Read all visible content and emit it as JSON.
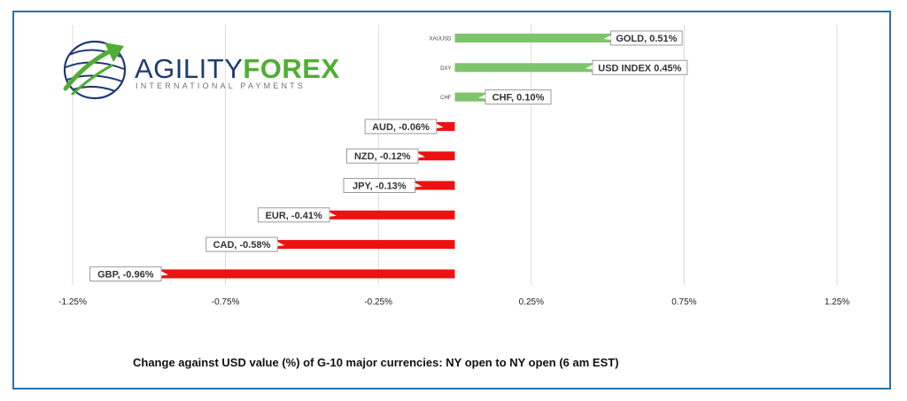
{
  "logo": {
    "brand_part1": "AGILITY",
    "brand_part2": "FOREX",
    "tagline": "INTERNATIONAL PAYMENTS",
    "colors": {
      "green": "#4fae32",
      "navy": "#1f3b73",
      "gray": "#6d7378"
    }
  },
  "caption": "Change against  USD value (%)  of  G-10 major currencies:  NY open to NY open  (6 am EST)",
  "colors": {
    "positive": "#7dc46b",
    "negative": "#ee1111",
    "grid": "#d9d9d9",
    "frame": "#2e6fa7"
  },
  "chart_data": {
    "type": "bar",
    "orientation": "horizontal",
    "categories": [
      "XAUUSD",
      "DXY",
      "CHF",
      "AUD",
      "NZD",
      "JPY",
      "EUR",
      "CAD",
      "GBP"
    ],
    "values": [
      0.51,
      0.45,
      0.1,
      -0.06,
      -0.12,
      -0.13,
      -0.41,
      -0.58,
      -0.96
    ],
    "data_labels": [
      "GOLD, 0.51%",
      "USD INDEX 0.45%",
      "CHF, 0.10%",
      "AUD, -0.06%",
      "NZD, -0.12%",
      "JPY, -0.13%",
      "EUR, -0.41%",
      "CAD, -0.58%",
      "GBP, -0.96%"
    ],
    "category_labels_shown": [
      true,
      true,
      true,
      false,
      false,
      false,
      false,
      false,
      false
    ],
    "xlim": [
      -1.25,
      1.25
    ],
    "xticks": [
      -1.25,
      -0.75,
      -0.25,
      0.25,
      0.75,
      1.25
    ],
    "xtick_labels": [
      "-1.25%",
      "-0.75%",
      "-0.25%",
      "0.25%",
      "0.75%",
      "1.25%"
    ],
    "grid": true,
    "legend": "none"
  }
}
